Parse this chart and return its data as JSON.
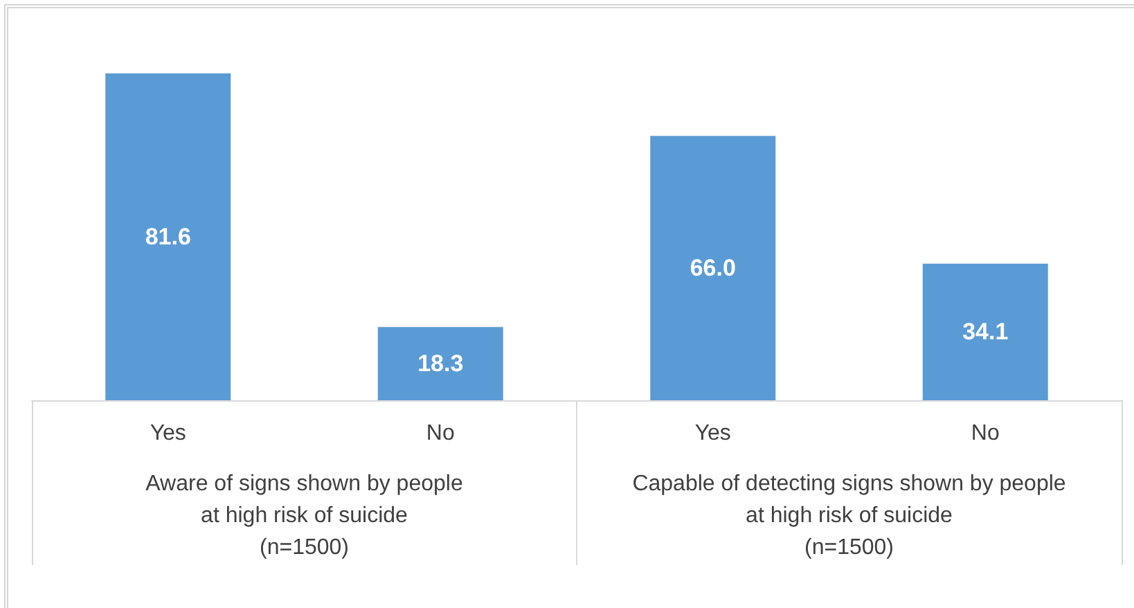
{
  "chart_data": {
    "type": "bar",
    "categories": [
      "Yes",
      "No",
      "Yes",
      "No"
    ],
    "values": [
      81.6,
      18.3,
      66.0,
      34.1
    ],
    "value_labels": [
      "81.6",
      "18.3",
      "66.0",
      "34.1"
    ],
    "color": "#5b9bd5",
    "annotations": [
      "Aware of signs shown by people\nat high risk of suicide\n(n=1500)",
      "Capable of detecting signs shown by people\nat high risk of suicide\n(n=1500)"
    ]
  }
}
